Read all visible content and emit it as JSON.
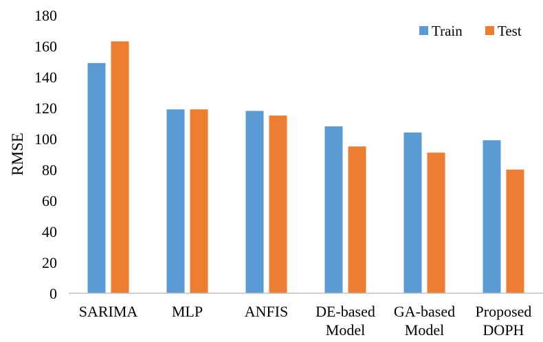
{
  "chart_data": {
    "type": "bar",
    "ylabel": "RMSE",
    "xlabel": "",
    "title": "",
    "ylim": [
      0,
      180
    ],
    "ytick_step": 20,
    "grid": false,
    "legend_position": "top-right",
    "categories": [
      [
        "SARIMA"
      ],
      [
        "MLP"
      ],
      [
        "ANFIS"
      ],
      [
        "DE-based",
        "Model"
      ],
      [
        "GA-based",
        "Model"
      ],
      [
        "Proposed",
        "DOPH"
      ]
    ],
    "series": [
      {
        "name": "Train",
        "color": "#5b9bd5",
        "values": [
          149,
          119,
          118,
          108,
          104,
          99
        ]
      },
      {
        "name": "Test",
        "color": "#ed7d31",
        "values": [
          163,
          119,
          115,
          95,
          91,
          80
        ]
      }
    ]
  }
}
